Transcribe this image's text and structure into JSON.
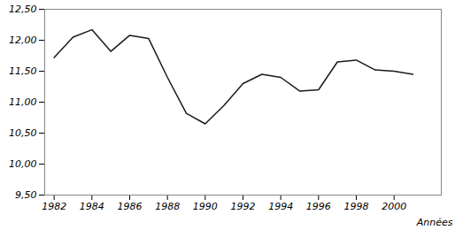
{
  "chart_data": {
    "type": "line",
    "x": [
      1982,
      1983,
      1984,
      1985,
      1986,
      1987,
      1988,
      1989,
      1990,
      1991,
      1992,
      1993,
      1994,
      1995,
      1996,
      1997,
      1998,
      1999,
      2000,
      2001
    ],
    "values": [
      11.72,
      12.05,
      12.17,
      11.82,
      12.08,
      12.03,
      11.4,
      10.82,
      10.65,
      10.95,
      11.3,
      11.45,
      11.4,
      11.18,
      11.2,
      11.65,
      11.68,
      11.52,
      11.5,
      11.45
    ],
    "color": "#1a1a1a",
    "xlabel": "Années",
    "xlim": [
      1981.5,
      2002.5
    ],
    "xticks": [
      1982,
      1984,
      1986,
      1988,
      1990,
      1992,
      1994,
      1996,
      1998,
      2000
    ],
    "ylim": [
      9.5,
      12.5
    ],
    "yticks": [
      {
        "value": 9.5,
        "label": "9,50"
      },
      {
        "value": 10.0,
        "label": "10,00"
      },
      {
        "value": 10.5,
        "label": "10,50"
      },
      {
        "value": 11.0,
        "label": "11,00"
      },
      {
        "value": 11.5,
        "label": "11,50"
      },
      {
        "value": 12.0,
        "label": "12,00"
      },
      {
        "value": 12.5,
        "label": "12,50"
      }
    ],
    "grid": false
  }
}
